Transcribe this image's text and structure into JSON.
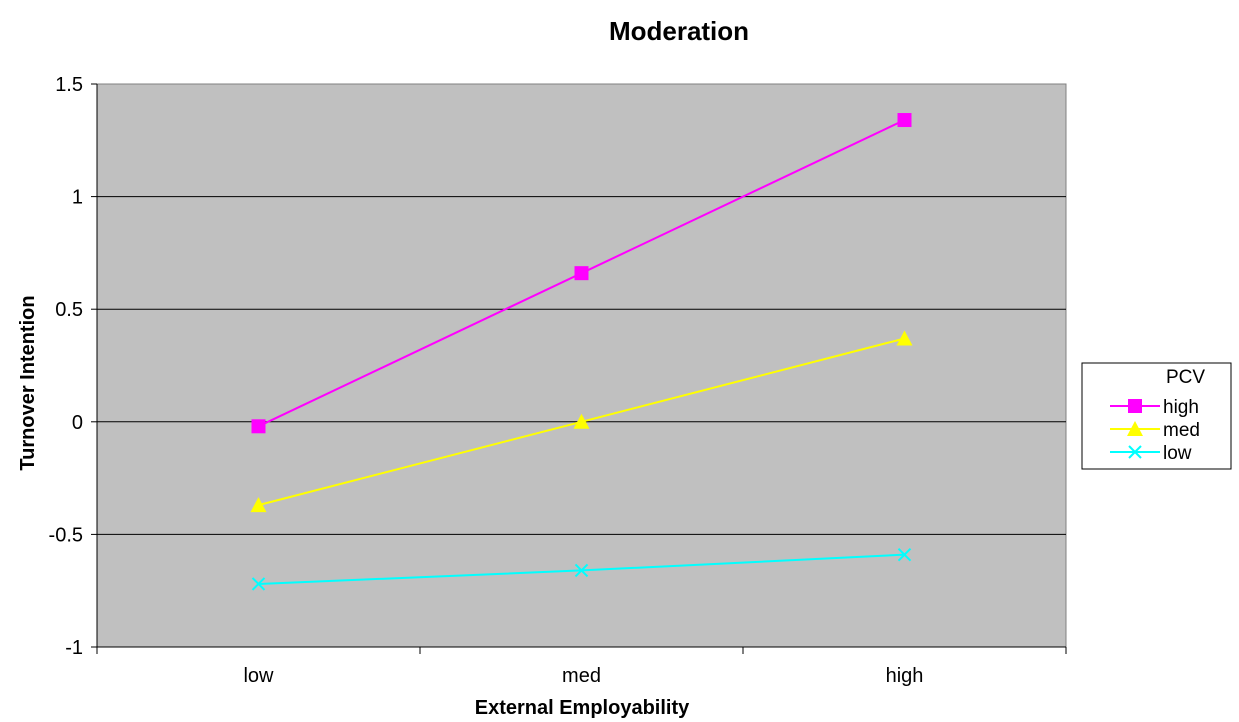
{
  "chart_data": {
    "type": "line",
    "title": "Moderation",
    "xlabel": "External Employability",
    "ylabel": "Turnover Intention",
    "categories": [
      "low",
      "med",
      "high"
    ],
    "ylim": [
      -1,
      1.5
    ],
    "yticks": [
      -1,
      -0.5,
      0,
      0.5,
      1,
      1.5
    ],
    "ytick_labels": [
      "-1",
      "-0.5",
      "0",
      "0.5",
      "1",
      "1.5"
    ],
    "grid": "horizontal",
    "plot_background": "#c0c0c0",
    "legend": {
      "title": "PCV",
      "placement": "right"
    },
    "series": [
      {
        "name": "high",
        "values": [
          -0.02,
          0.66,
          1.34
        ],
        "color": "#ff00ff",
        "marker": "square"
      },
      {
        "name": "med",
        "values": [
          -0.37,
          0.0,
          0.37
        ],
        "color": "#ffff00",
        "marker": "triangle"
      },
      {
        "name": "low",
        "values": [
          -0.72,
          -0.66,
          -0.59
        ],
        "color": "#00ffff",
        "marker": "x"
      }
    ]
  }
}
